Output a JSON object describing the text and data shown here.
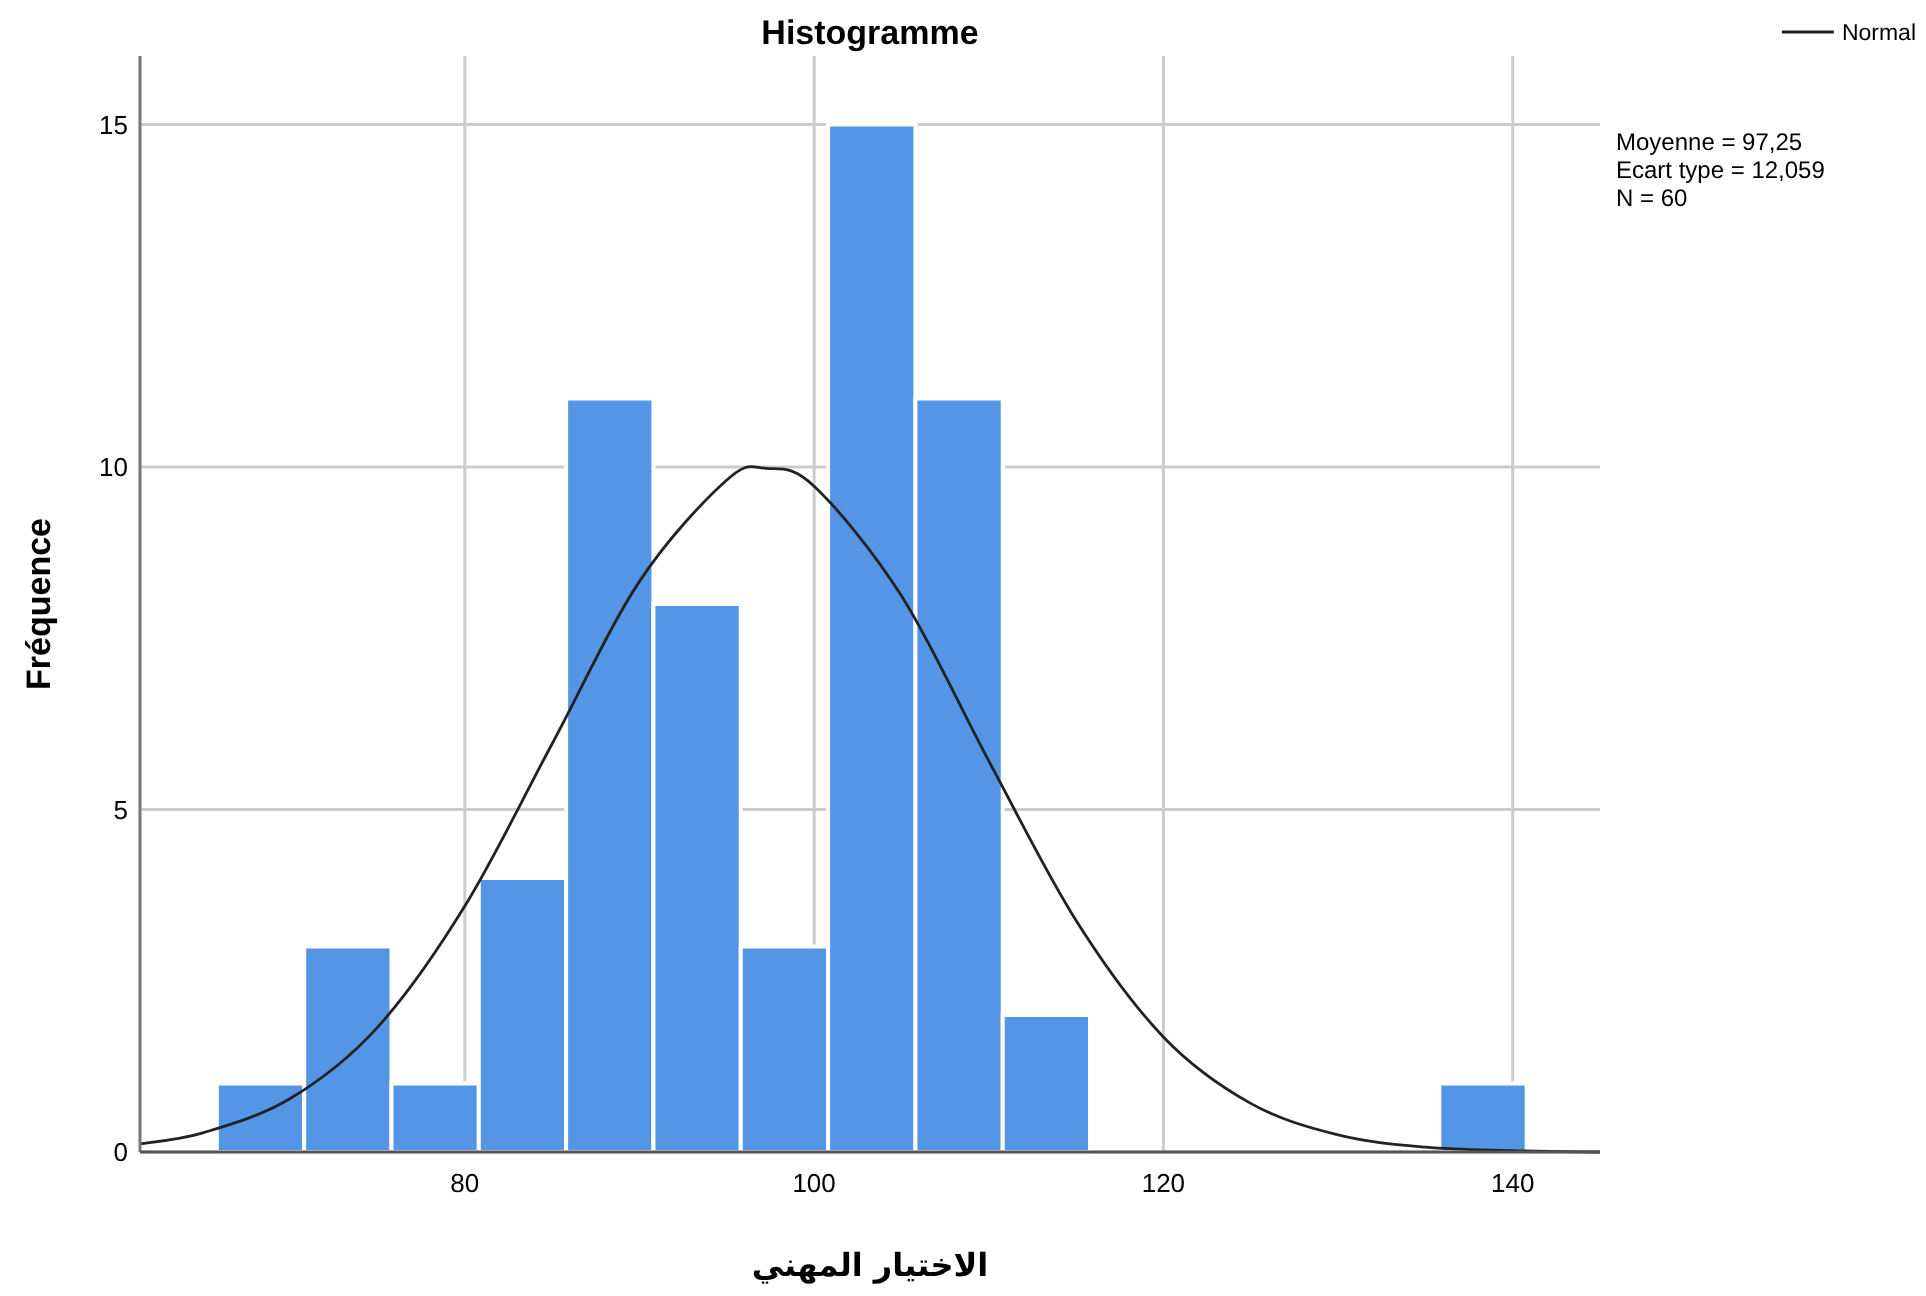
{
  "chart_data": {
    "type": "histogram",
    "title": "Histogramme",
    "xlabel": "الاختيار المهني",
    "ylabel": "Fréquence",
    "annotations": [
      "Moyenne = 97,25",
      "Ecart type = 12,059",
      "N = 60"
    ],
    "series": [
      {
        "color": "#5595e6",
        "bins": [
          65.8,
          70.8,
          75.8,
          80.8,
          85.8,
          90.8,
          95.8,
          100.8,
          105.8,
          110.8,
          115.8,
          120.8,
          125.8,
          130.8,
          135.8,
          140.8
        ],
        "values": [
          1,
          3,
          1,
          4,
          11,
          8,
          3,
          15,
          11,
          2,
          0,
          0,
          0,
          0,
          1
        ]
      },
      {
        "type": "line",
        "name": "Normal",
        "color": "#222222",
        "x": [
          61.4,
          65,
          70,
          75,
          80,
          85,
          90,
          95,
          97.25,
          100,
          105,
          110,
          115,
          120,
          125,
          130,
          135,
          140,
          145
        ],
        "values": [
          0.12,
          0.28,
          0.78,
          1.82,
          3.59,
          5.96,
          8.33,
          9.81,
          9.98,
          9.72,
          8.12,
          5.71,
          3.38,
          1.68,
          0.71,
          0.25,
          0.07,
          0.02,
          0.0
        ]
      }
    ],
    "xlim": [
      61.4,
      145
    ],
    "ylim": [
      0,
      16
    ],
    "xticks": [
      80,
      100,
      120,
      140
    ],
    "yticks": [
      0,
      5,
      10,
      15
    ],
    "grid": true,
    "legend": "top right"
  }
}
